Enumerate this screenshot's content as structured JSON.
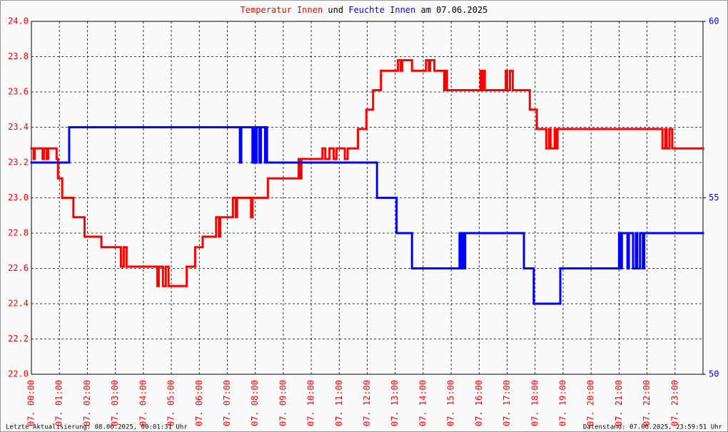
{
  "chart_data": {
    "type": "step",
    "title_connector": "und",
    "title_suffix": "am 07.06.2025",
    "xlim": [
      0,
      24
    ],
    "xticks": [
      {
        "value": 0,
        "label": "07. 00:00"
      },
      {
        "value": 1,
        "label": "07. 01:00"
      },
      {
        "value": 2,
        "label": "07. 02:00"
      },
      {
        "value": 3,
        "label": "07. 03:00"
      },
      {
        "value": 4,
        "label": "07. 04:00"
      },
      {
        "value": 5,
        "label": "07. 05:00"
      },
      {
        "value": 6,
        "label": "07. 06:00"
      },
      {
        "value": 7,
        "label": "07. 07:00"
      },
      {
        "value": 8,
        "label": "07. 08:00"
      },
      {
        "value": 9,
        "label": "07. 09:00"
      },
      {
        "value": 10,
        "label": "07. 10:00"
      },
      {
        "value": 11,
        "label": "07. 11:00"
      },
      {
        "value": 12,
        "label": "07. 12:00"
      },
      {
        "value": 13,
        "label": "07. 13:00"
      },
      {
        "value": 14,
        "label": "07. 14:00"
      },
      {
        "value": 15,
        "label": "07. 15:00"
      },
      {
        "value": 16,
        "label": "07. 16:00"
      },
      {
        "value": 17,
        "label": "07. 17:00"
      },
      {
        "value": 18,
        "label": "07. 18:00"
      },
      {
        "value": 19,
        "label": "07. 19:00"
      },
      {
        "value": 20,
        "label": "07. 20:00"
      },
      {
        "value": 21,
        "label": "07. 21:00"
      },
      {
        "value": 22,
        "label": "07. 22:00"
      },
      {
        "value": 23,
        "label": "07. 23:00"
      }
    ],
    "ylim": [
      22.0,
      24.0
    ],
    "yticks": [
      {
        "value": 22.0,
        "label": "22.0"
      },
      {
        "value": 22.2,
        "label": "22.2"
      },
      {
        "value": 22.4,
        "label": "22.4"
      },
      {
        "value": 22.6,
        "label": "22.6"
      },
      {
        "value": 22.8,
        "label": "22.8"
      },
      {
        "value": 23.0,
        "label": "23.0"
      },
      {
        "value": 23.2,
        "label": "23.2"
      },
      {
        "value": 23.4,
        "label": "23.4"
      },
      {
        "value": 23.6,
        "label": "23.6"
      },
      {
        "value": 23.8,
        "label": "23.8"
      },
      {
        "value": 24.0,
        "label": "24.0"
      }
    ],
    "y2lim": [
      50,
      60
    ],
    "y2ticks": [
      50,
      55,
      60
    ],
    "grid": true,
    "series": [
      {
        "name": "Temperatur Innen",
        "color": "#ff0000",
        "axis": "y",
        "x": [
          0,
          0.08,
          0.12,
          0.4,
          0.45,
          0.55,
          0.6,
          0.9,
          0.95,
          1.1,
          1.5,
          1.9,
          2.5,
          3.2,
          3.3,
          3.4,
          4.5,
          4.55,
          4.7,
          4.8,
          4.9,
          5.55,
          5.85,
          6.12,
          6.6,
          6.7,
          6.75,
          7.2,
          7.3,
          7.35,
          7.85,
          7.9,
          8.45,
          9.55,
          9.6,
          9.65,
          10.4,
          10.5,
          10.65,
          10.8,
          10.9,
          11.2,
          11.3,
          11.67,
          11.97,
          12.21,
          12.49,
          13.1,
          13.2,
          13.25,
          13.6,
          14.1,
          14.2,
          14.25,
          14.4,
          14.75,
          14.8,
          14.85,
          16.05,
          16.1,
          16.15,
          16.2,
          16.95,
          17.0,
          17.1,
          17.2,
          17.81,
          18.06,
          18.4,
          18.5,
          18.55,
          18.7,
          18.75,
          18.8,
          22.55,
          22.65,
          22.7,
          22.8,
          22.9,
          24
        ],
        "values": [
          23.28,
          23.22,
          23.28,
          23.22,
          23.28,
          23.22,
          23.28,
          23.22,
          23.11,
          23.0,
          22.89,
          22.78,
          22.72,
          22.61,
          22.72,
          22.61,
          22.5,
          22.61,
          22.5,
          22.61,
          22.5,
          22.61,
          22.72,
          22.78,
          22.89,
          22.78,
          22.89,
          23.0,
          22.89,
          23.0,
          22.89,
          23.0,
          23.11,
          23.22,
          23.11,
          23.22,
          23.28,
          23.22,
          23.28,
          23.22,
          23.28,
          23.22,
          23.28,
          23.39,
          23.5,
          23.61,
          23.72,
          23.78,
          23.72,
          23.78,
          23.72,
          23.78,
          23.72,
          23.78,
          23.72,
          23.61,
          23.72,
          23.61,
          23.72,
          23.61,
          23.72,
          23.61,
          23.72,
          23.61,
          23.72,
          23.61,
          23.5,
          23.39,
          23.28,
          23.39,
          23.28,
          23.39,
          23.28,
          23.39,
          23.28,
          23.39,
          23.28,
          23.39,
          23.28,
          23.28
        ]
      },
      {
        "name": "Feuchte Innen",
        "color": "#0000ff",
        "axis": "y2",
        "x": [
          0,
          1.35,
          7.45,
          7.5,
          7.9,
          7.95,
          8.0,
          8.05,
          8.15,
          8.2,
          8.35,
          8.4,
          8.42,
          12.35,
          13.05,
          13.6,
          15.3,
          15.35,
          15.4,
          15.45,
          15.5,
          17.6,
          17.95,
          18.9,
          21.0,
          21.05,
          21.1,
          21.3,
          21.35,
          21.5,
          21.6,
          21.65,
          21.75,
          21.85,
          21.9,
          24
        ],
        "values": [
          56,
          57,
          56,
          57,
          56,
          57,
          56,
          57,
          56,
          57,
          56,
          57,
          56,
          55,
          54,
          53,
          54,
          53,
          54,
          53,
          54,
          53,
          52,
          53,
          54,
          53,
          54,
          53,
          54,
          53,
          54,
          53,
          54,
          53,
          54,
          54
        ]
      }
    ],
    "footer_left": "Letzte Aktualisierung: 08.06.2025, 00:01:31 Uhr",
    "footer_right": "Datenstand: 07.06.2025, 23:59:51 Uhr"
  }
}
